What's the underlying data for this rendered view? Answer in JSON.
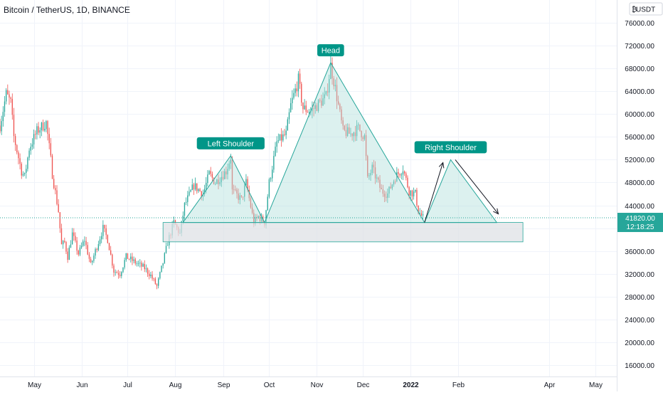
{
  "header": {
    "title": "Bitcoin / TetherUS, 1D, BINANCE",
    "currency_badge": "USDT"
  },
  "price_axis": {
    "ticks": [
      "76000.00",
      "72000.00",
      "68000.00",
      "64000.00",
      "60000.00",
      "56000.00",
      "52000.00",
      "48000.00",
      "44000.00",
      "40000.00",
      "36000.00",
      "32000.00",
      "28000.00",
      "24000.00",
      "20000.00",
      "16000.00"
    ],
    "tick_values": [
      76000,
      72000,
      68000,
      64000,
      60000,
      56000,
      52000,
      48000,
      44000,
      40000,
      36000,
      32000,
      28000,
      24000,
      20000,
      16000
    ],
    "last_price": "41820.00",
    "countdown": "12:18:25",
    "last_price_value": 41820
  },
  "time_axis": {
    "labels": [
      "May",
      "Jun",
      "Jul",
      "Aug",
      "Sep",
      "Oct",
      "Nov",
      "Dec",
      "2022",
      "Feb",
      "Apr",
      "May"
    ],
    "dates": [
      "2021-05-01",
      "2021-06-01",
      "2021-07-01",
      "2021-08-01",
      "2021-09-01",
      "2021-10-01",
      "2021-11-01",
      "2021-12-01",
      "2022-01-01",
      "2022-02-01",
      "2022-04-01",
      "2022-05-01"
    ],
    "bold": [
      false,
      false,
      false,
      false,
      false,
      false,
      false,
      false,
      true,
      false,
      false,
      false
    ]
  },
  "colors": {
    "up_candle": "#26a69a",
    "down_candle": "#ef5350",
    "pattern_fill": "#b2dfdb",
    "pattern_stroke": "#26a69a",
    "label_bg": "#009688",
    "support_fill": "#dfe1e5",
    "support_stroke": "#26a69a",
    "last_price_bg": "#26a69a",
    "grid": "#f0f3fa"
  },
  "annotations": {
    "left_shoulder": "Left Shoulder",
    "head": "Head",
    "right_shoulder": "Right Shoulder"
  },
  "chart_data": {
    "type": "candlestick",
    "symbol": "Bitcoin / TetherUS",
    "interval": "1D",
    "exchange": "BINANCE",
    "y_range": [
      14000,
      80000
    ],
    "x_range": [
      "2021-04-09",
      "2022-05-15"
    ],
    "price_path": [
      [
        "2021-04-09",
        58000
      ],
      [
        "2021-04-13",
        63500
      ],
      [
        "2021-04-16",
        62000
      ],
      [
        "2021-04-18",
        56000
      ],
      [
        "2021-04-23",
        50000
      ],
      [
        "2021-04-25",
        49000
      ],
      [
        "2021-04-28",
        54000
      ],
      [
        "2021-05-03",
        57000
      ],
      [
        "2021-05-09",
        58500
      ],
      [
        "2021-05-12",
        52000
      ],
      [
        "2021-05-13",
        49500
      ],
      [
        "2021-05-17",
        43000
      ],
      [
        "2021-05-19",
        37000
      ],
      [
        "2021-05-21",
        37500
      ],
      [
        "2021-05-23",
        35000
      ],
      [
        "2021-05-26",
        39000
      ],
      [
        "2021-05-30",
        35500
      ],
      [
        "2021-06-03",
        38000
      ],
      [
        "2021-06-07",
        33500
      ],
      [
        "2021-06-10",
        36000
      ],
      [
        "2021-06-15",
        40000
      ],
      [
        "2021-06-18",
        38000
      ],
      [
        "2021-06-22",
        32500
      ],
      [
        "2021-06-26",
        32000
      ],
      [
        "2021-06-30",
        35000
      ],
      [
        "2021-07-06",
        34000
      ],
      [
        "2021-07-12",
        33000
      ],
      [
        "2021-07-16",
        31700
      ],
      [
        "2021-07-20",
        29800
      ],
      [
        "2021-07-24",
        34000
      ],
      [
        "2021-07-27",
        37500
      ],
      [
        "2021-07-31",
        41000
      ],
      [
        "2021-08-04",
        39000
      ],
      [
        "2021-08-07",
        44000
      ],
      [
        "2021-08-13",
        47500
      ],
      [
        "2021-08-19",
        46000
      ],
      [
        "2021-08-23",
        49500
      ],
      [
        "2021-08-27",
        48000
      ],
      [
        "2021-09-03",
        50000
      ],
      [
        "2021-09-06",
        52500
      ],
      [
        "2021-09-07",
        46500
      ],
      [
        "2021-09-13",
        45000
      ],
      [
        "2021-09-16",
        48000
      ],
      [
        "2021-09-21",
        41000
      ],
      [
        "2021-09-24",
        42000
      ],
      [
        "2021-09-28",
        41000
      ],
      [
        "2021-10-01",
        48000
      ],
      [
        "2021-10-06",
        55000
      ],
      [
        "2021-10-12",
        56500
      ],
      [
        "2021-10-15",
        61500
      ],
      [
        "2021-10-20",
        66000
      ],
      [
        "2021-10-23",
        61000
      ],
      [
        "2021-10-28",
        60500
      ],
      [
        "2021-11-03",
        62000
      ],
      [
        "2021-11-07",
        63000
      ],
      [
        "2021-11-10",
        68500
      ],
      [
        "2021-11-13",
        64500
      ],
      [
        "2021-11-18",
        57000
      ],
      [
        "2021-11-23",
        56500
      ],
      [
        "2021-11-28",
        57500
      ],
      [
        "2021-12-02",
        56000
      ],
      [
        "2021-12-04",
        48500
      ],
      [
        "2021-12-07",
        50500
      ],
      [
        "2021-12-13",
        46500
      ],
      [
        "2021-12-17",
        46000
      ],
      [
        "2021-12-22",
        49000
      ],
      [
        "2021-12-27",
        50500
      ],
      [
        "2021-12-31",
        46500
      ],
      [
        "2022-01-04",
        46000
      ],
      [
        "2022-01-06",
        43000
      ],
      [
        "2022-01-09",
        41820
      ]
    ],
    "support_zone": {
      "from": "2021-07-24",
      "to": "2022-03-15",
      "low": 37600,
      "high": 41000
    },
    "neckline": 41000,
    "patterns": [
      {
        "label": "Left Shoulder",
        "points": [
          [
            "2021-08-06",
            41000
          ],
          [
            "2021-09-06",
            52700
          ],
          [
            "2021-09-28",
            41000
          ]
        ]
      },
      {
        "label": "Head",
        "points": [
          [
            "2021-09-28",
            41000
          ],
          [
            "2021-11-10",
            69000
          ],
          [
            "2022-01-10",
            41000
          ]
        ]
      },
      {
        "label": "Right Shoulder",
        "points": [
          [
            "2022-01-10",
            41000
          ],
          [
            "2022-01-27",
            52000
          ],
          [
            "2022-02-26",
            41000
          ]
        ]
      }
    ],
    "projection_arrows": [
      [
        [
          "2022-01-10",
          41000
        ],
        [
          "2022-01-22",
          51500
        ]
      ],
      [
        [
          "2022-01-30",
          52000
        ],
        [
          "2022-02-27",
          42500
        ]
      ]
    ]
  }
}
